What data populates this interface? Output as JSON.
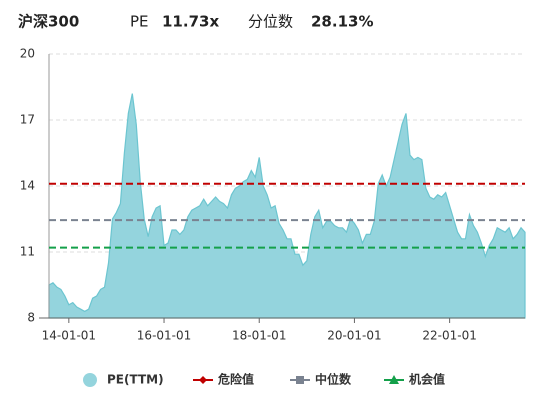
{
  "header": {
    "index": "沪深300",
    "metric": "PE",
    "metric_value": "11.73x",
    "percentile_label": "分位数",
    "percentile_value": "28.13%"
  },
  "chart_data": {
    "type": "area",
    "x": [
      "13-08-01",
      "13-09-01",
      "13-10-01",
      "13-11-01",
      "13-12-01",
      "14-01-01",
      "14-02-01",
      "14-03-01",
      "14-04-01",
      "14-05-01",
      "14-06-01",
      "14-07-01",
      "14-08-01",
      "14-09-01",
      "14-10-01",
      "14-11-01",
      "14-12-01",
      "15-01-01",
      "15-02-01",
      "15-03-01",
      "15-04-01",
      "15-05-01",
      "15-06-01",
      "15-07-01",
      "15-08-01",
      "15-09-01",
      "15-10-01",
      "15-11-01",
      "15-12-01",
      "16-01-01",
      "16-02-01",
      "16-03-01",
      "16-04-01",
      "16-05-01",
      "16-06-01",
      "16-07-01",
      "16-08-01",
      "16-09-01",
      "16-10-01",
      "16-11-01",
      "16-12-01",
      "17-01-01",
      "17-02-01",
      "17-03-01",
      "17-04-01",
      "17-05-01",
      "17-06-01",
      "17-07-01",
      "17-08-01",
      "17-09-01",
      "17-10-01",
      "17-11-01",
      "17-12-01",
      "18-01-01",
      "18-02-01",
      "18-03-01",
      "18-04-01",
      "18-05-01",
      "18-06-01",
      "18-07-01",
      "18-08-01",
      "18-09-01",
      "18-10-01",
      "18-11-01",
      "18-12-01",
      "19-01-01",
      "19-02-01",
      "19-03-01",
      "19-04-01",
      "19-05-01",
      "19-06-01",
      "19-07-01",
      "19-08-01",
      "19-09-01",
      "19-10-01",
      "19-11-01",
      "19-12-01",
      "20-01-01",
      "20-02-01",
      "20-03-01",
      "20-04-01",
      "20-05-01",
      "20-06-01",
      "20-07-01",
      "20-08-01",
      "20-09-01",
      "20-10-01",
      "20-11-01",
      "20-12-01",
      "21-01-01",
      "21-02-01",
      "21-03-01",
      "21-04-01",
      "21-05-01",
      "21-06-01",
      "21-07-01",
      "21-08-01",
      "21-09-01",
      "21-10-01",
      "21-11-01",
      "21-12-01",
      "22-01-01",
      "22-02-01",
      "22-03-01",
      "22-04-01",
      "22-05-01",
      "22-06-01",
      "22-07-01",
      "22-08-01",
      "22-09-01",
      "22-10-01",
      "22-11-01",
      "22-12-01",
      "23-01-01",
      "23-02-01",
      "23-03-01",
      "23-04-01",
      "23-05-01",
      "23-06-01",
      "23-07-01",
      "23-08-01"
    ],
    "series": [
      {
        "name": "PE(TTM)",
        "color": "#94d4dd",
        "values": [
          9.5,
          9.6,
          9.4,
          9.3,
          9.0,
          8.6,
          8.7,
          8.5,
          8.4,
          8.3,
          8.4,
          8.9,
          9.0,
          9.3,
          9.4,
          10.5,
          12.5,
          12.8,
          13.2,
          15.5,
          17.3,
          18.2,
          16.8,
          14.2,
          12.5,
          11.7,
          12.6,
          13.0,
          13.1,
          11.3,
          11.4,
          12.0,
          12.0,
          11.8,
          12.0,
          12.6,
          12.9,
          13.0,
          13.1,
          13.4,
          13.1,
          13.3,
          13.5,
          13.3,
          13.2,
          13.0,
          13.6,
          13.9,
          14.0,
          14.2,
          14.3,
          14.7,
          14.4,
          15.3,
          14.0,
          13.6,
          13.0,
          13.1,
          12.3,
          12.0,
          11.6,
          11.6,
          10.9,
          10.9,
          10.4,
          10.6,
          11.8,
          12.6,
          12.9,
          12.1,
          12.4,
          12.4,
          12.2,
          12.1,
          12.1,
          11.9,
          12.5,
          12.3,
          12.0,
          11.4,
          11.8,
          11.8,
          12.4,
          14.1,
          14.5,
          14.0,
          14.4,
          15.2,
          16.0,
          16.8,
          17.3,
          15.4,
          15.2,
          15.3,
          15.2,
          13.9,
          13.5,
          13.4,
          13.6,
          13.5,
          13.7,
          13.1,
          12.5,
          11.9,
          11.6,
          11.6,
          12.7,
          12.2,
          11.9,
          11.4,
          10.8,
          11.3,
          11.6,
          12.1,
          12.0,
          11.9,
          12.1,
          11.6,
          11.8,
          12.1,
          11.9
        ]
      }
    ],
    "reference_lines": [
      {
        "name": "危险值",
        "color": "#c00000",
        "value": 14.1
      },
      {
        "name": "中位数",
        "color": "#7a8290",
        "value": 12.45
      },
      {
        "name": "机会值",
        "color": "#14a04a",
        "value": 11.2
      }
    ],
    "ylim": [
      8,
      20
    ],
    "yticks": [
      8,
      11,
      14,
      17,
      20
    ],
    "xticks": [
      "14-01-01",
      "16-01-01",
      "18-01-01",
      "20-01-01",
      "22-01-01"
    ],
    "grid": true
  }
}
